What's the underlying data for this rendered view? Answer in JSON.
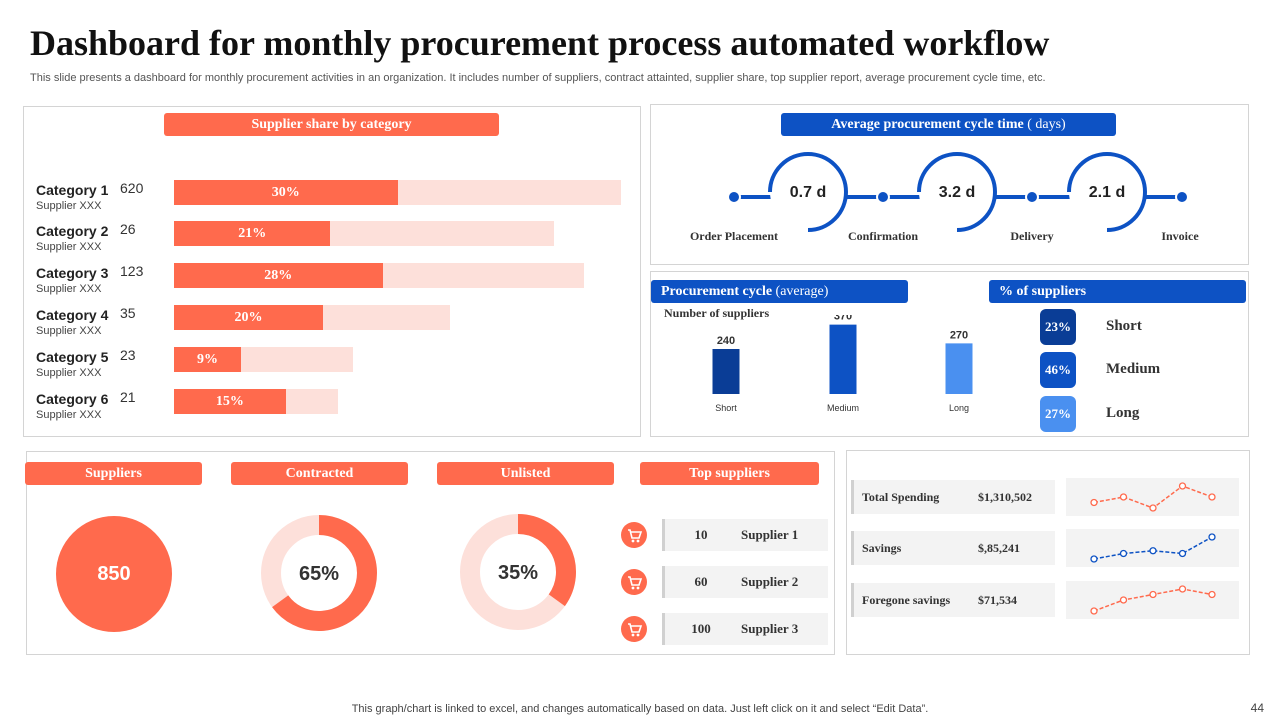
{
  "header": {
    "title": "Dashboard for monthly procurement process automated workflow",
    "subtitle": "This slide presents a dashboard for monthly procurement activities in an organization. It includes number of suppliers, contract attainted, supplier share, top supplier report, average procurement cycle time, etc."
  },
  "colors": {
    "orange": "#ff6a4d",
    "orange_light": "#fde0da",
    "blue_dark": "#0a3d96",
    "blue": "#0d52c4",
    "blue_light": "#4a90f0"
  },
  "supplier_share": {
    "title": "Supplier  share by category",
    "categories": [
      {
        "name": "Category 1",
        "sub": "Supplier XXX",
        "count": "620",
        "pct": 30,
        "pct_label": "30%",
        "total": 60
      },
      {
        "name": "Category 2",
        "sub": "Supplier XXX",
        "count": "26",
        "pct": 21,
        "pct_label": "21%",
        "total": 51
      },
      {
        "name": "Category 3",
        "sub": "Supplier XXX",
        "count": "123",
        "pct": 28,
        "pct_label": "28%",
        "total": 55
      },
      {
        "name": "Category 4",
        "sub": "Supplier XXX",
        "count": "35",
        "pct": 20,
        "pct_label": "20%",
        "total": 37
      },
      {
        "name": "Category 5",
        "sub": "Supplier XXX",
        "count": "23",
        "pct": 9,
        "pct_label": "9%",
        "total": 24
      },
      {
        "name": "Category 6",
        "sub": "Supplier XXX",
        "count": "21",
        "pct": 15,
        "pct_label": "15%",
        "total": 22
      }
    ]
  },
  "cycle_time": {
    "title_main": "Average procurement cycle time",
    "title_unit": " ( days)",
    "stages": [
      "Order  Placement",
      "Confirmation",
      "Delivery",
      "Invoice"
    ],
    "durations": [
      "0.7  d",
      "3.2  d",
      "2.1  d"
    ]
  },
  "procurement_cycle": {
    "title_main": "Procurement  cycle",
    "title_unit": " (average)",
    "axis_title": "Number  of suppliers"
  },
  "pct_suppliers": {
    "title": "% of  suppliers",
    "items": [
      {
        "pct": "23%",
        "label": "Short",
        "color": "#0a3d96"
      },
      {
        "pct": "46%",
        "label": "Medium",
        "color": "#0d52c4"
      },
      {
        "pct": "27%",
        "label": "Long",
        "color": "#4a90f0"
      }
    ]
  },
  "chart_data": {
    "type": "bar",
    "title": "Procurement  cycle (average)",
    "ylabel": "Number  of suppliers",
    "categories": [
      "Short",
      "Medium",
      "Long"
    ],
    "values": [
      240,
      370,
      270
    ],
    "value_labels": [
      "240",
      "370",
      "270"
    ],
    "ylim": [
      0,
      400
    ]
  },
  "kpis": {
    "suppliers": {
      "label": "Suppliers",
      "value": "850"
    },
    "contracted": {
      "label": "Contracted",
      "value": "65%",
      "pct": 65
    },
    "unlisted": {
      "label": "Unlisted",
      "value": "35%",
      "pct": 35
    }
  },
  "top_suppliers": {
    "title": "Top suppliers",
    "rows": [
      {
        "count": "10",
        "name": "Supplier 1"
      },
      {
        "count": "60",
        "name": "Supplier 2"
      },
      {
        "count": "100",
        "name": "Supplier 3"
      }
    ]
  },
  "spending": {
    "rows": [
      {
        "label": "Total Spending",
        "value": "$1,310,502",
        "trend": [
          3,
          4,
          2,
          6,
          4
        ],
        "color": "#ff6a4d"
      },
      {
        "label": "Savings",
        "value": "$,85,241",
        "trend": [
          2,
          3,
          3.5,
          3,
          6
        ],
        "color": "#0d52c4"
      },
      {
        "label": "Foregone savings",
        "value": "$71,534",
        "trend": [
          1,
          3,
          4,
          5,
          4
        ],
        "color": "#ff6a4d"
      }
    ]
  },
  "footer": {
    "note": "This graph/chart is linked to excel,  and changes automatically based on data. Just left click on it and select “Edit Data”.",
    "page": "44"
  }
}
